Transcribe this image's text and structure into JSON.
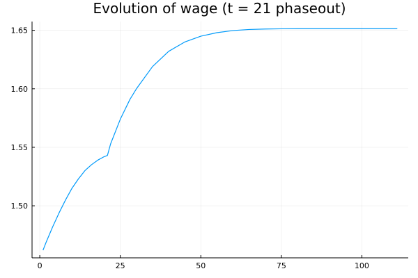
{
  "chart_data": {
    "type": "line",
    "title": "Evolution of wage (t = 21 phaseout)",
    "xlabel": "",
    "ylabel": "",
    "xlim": [
      1,
      111
    ],
    "ylim": [
      1.458,
      1.657
    ],
    "grid": true,
    "legend": "none",
    "xticks": [
      0,
      25,
      50,
      75,
      100
    ],
    "xtick_labels": [
      "0",
      "25",
      "50",
      "75",
      "100"
    ],
    "yticks": [
      1.5,
      1.55,
      1.6,
      1.65
    ],
    "ytick_labels": [
      "1.50",
      "1.55",
      "1.60",
      "1.65"
    ],
    "series": [
      {
        "color": "#009AFA",
        "x": [
          1,
          2,
          4,
          6,
          8,
          10,
          12,
          14,
          16,
          18,
          20,
          21,
          22,
          25,
          28,
          30,
          35,
          40,
          45,
          50,
          55,
          60,
          65,
          70,
          75,
          80,
          90,
          100,
          111
        ],
        "y": [
          1.462,
          1.469,
          1.482,
          1.494,
          1.505,
          1.515,
          1.523,
          1.53,
          1.535,
          1.539,
          1.542,
          1.543,
          1.553,
          1.574,
          1.591,
          1.6,
          1.619,
          1.632,
          1.64,
          1.645,
          1.648,
          1.6498,
          1.6507,
          1.6511,
          1.6513,
          1.6514,
          1.6514,
          1.6514,
          1.6514
        ]
      }
    ]
  }
}
